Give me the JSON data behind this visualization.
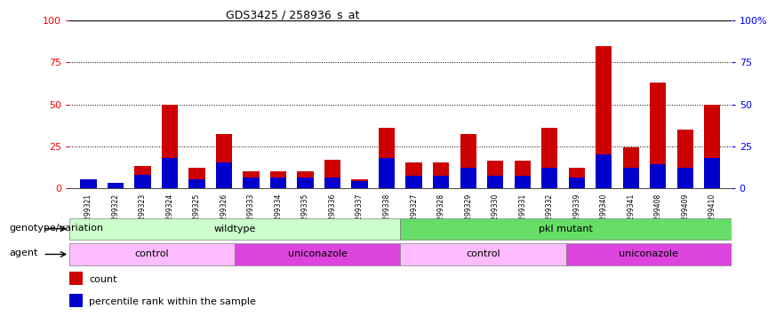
{
  "title": "GDS3425 / 258936_s_at",
  "samples": [
    "GSM299321",
    "GSM299322",
    "GSM299323",
    "GSM299324",
    "GSM299325",
    "GSM299326",
    "GSM299333",
    "GSM299334",
    "GSM299335",
    "GSM299336",
    "GSM299337",
    "GSM299338",
    "GSM299327",
    "GSM299328",
    "GSM299329",
    "GSM299330",
    "GSM299331",
    "GSM299332",
    "GSM299339",
    "GSM299340",
    "GSM299341",
    "GSM299408",
    "GSM299409",
    "GSM299410"
  ],
  "count": [
    3,
    2,
    13,
    50,
    12,
    32,
    10,
    10,
    10,
    17,
    5,
    36,
    15,
    15,
    32,
    16,
    16,
    36,
    12,
    85,
    24,
    63,
    35,
    50
  ],
  "percentile": [
    5,
    3,
    8,
    18,
    5,
    15,
    6,
    6,
    6,
    6,
    4,
    18,
    7,
    7,
    12,
    7,
    7,
    12,
    6,
    20,
    12,
    14,
    12,
    18
  ],
  "bar_color_red": "#cc0000",
  "bar_color_blue": "#0000cc",
  "bg_color": "#ffffff",
  "ylim": [
    0,
    100
  ],
  "yticks": [
    0,
    25,
    50,
    75,
    100
  ],
  "ytick_labels_left": [
    "0",
    "25",
    "50",
    "75",
    "100"
  ],
  "ytick_labels_right": [
    "0",
    "25",
    "50",
    "75",
    "100%"
  ],
  "genotype_groups": [
    {
      "label": "wildtype",
      "start": 0,
      "end": 11,
      "color": "#ccffcc"
    },
    {
      "label": "pkl mutant",
      "start": 12,
      "end": 23,
      "color": "#66dd66"
    }
  ],
  "agent_groups": [
    {
      "label": "control",
      "start": 0,
      "end": 5,
      "color": "#ffbbff"
    },
    {
      "label": "uniconazole",
      "start": 6,
      "end": 11,
      "color": "#dd44dd"
    },
    {
      "label": "control",
      "start": 12,
      "end": 17,
      "color": "#ffbbff"
    },
    {
      "label": "uniconazole",
      "start": 18,
      "end": 23,
      "color": "#dd44dd"
    }
  ],
  "genotype_label": "genotype/variation",
  "agent_label": "agent",
  "legend_count": "count",
  "legend_percentile": "percentile rank within the sample"
}
